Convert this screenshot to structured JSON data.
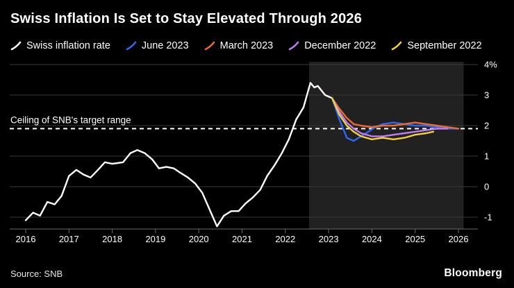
{
  "header": {
    "title": "Swiss Inflation Is Set to Stay Elevated Through 2026"
  },
  "footer": {
    "source": "Source: SNB",
    "brand": "Bloomberg"
  },
  "annotation": {
    "ceiling_label": "Ceiling of SNB's target range",
    "ceiling_value": 1.9
  },
  "colors": {
    "background": "#000000",
    "grid": "#3a3a3a",
    "axis": "#6e6e6e",
    "text": "#ffffff",
    "forecast_region": "rgba(255,255,255,0.13)"
  },
  "chart_data": {
    "type": "line",
    "title": "Swiss Inflation Is Set to Stay Elevated Through 2026",
    "xlabel": "",
    "ylabel": "",
    "ylim": [
      -1,
      4
    ],
    "xlim": [
      2016,
      2026
    ],
    "grid": true,
    "legend_position": "top",
    "x_ticks": [
      2016,
      2017,
      2018,
      2019,
      2020,
      2021,
      2022,
      2023,
      2024,
      2025,
      2026
    ],
    "y_ticks": [
      {
        "value": 4,
        "label": "4%"
      },
      {
        "value": 3,
        "label": "3"
      },
      {
        "value": 2,
        "label": "2"
      },
      {
        "value": 1,
        "label": "1"
      },
      {
        "value": 0,
        "label": "0"
      },
      {
        "value": -1,
        "label": "-1"
      }
    ],
    "forecast_region": {
      "x_start": 2022.55,
      "x_end": 2026.12
    },
    "ceiling_line": {
      "value": 1.9,
      "label": "Ceiling of SNB's target range"
    },
    "series": [
      {
        "name": "Swiss inflation rate",
        "color": "#ffffff",
        "x": [
          2016.0,
          2016.17,
          2016.33,
          2016.5,
          2016.67,
          2016.83,
          2017.0,
          2017.17,
          2017.33,
          2017.5,
          2017.67,
          2017.83,
          2018.0,
          2018.25,
          2018.42,
          2018.58,
          2018.75,
          2018.92,
          2019.08,
          2019.25,
          2019.42,
          2019.58,
          2019.75,
          2019.92,
          2020.08,
          2020.25,
          2020.42,
          2020.58,
          2020.75,
          2020.92,
          2021.08,
          2021.25,
          2021.42,
          2021.58,
          2021.75,
          2021.92,
          2022.08,
          2022.25,
          2022.42,
          2022.58,
          2022.67,
          2022.75,
          2022.92,
          2023.08
        ],
        "values": [
          -1.1,
          -0.85,
          -0.95,
          -0.5,
          -0.58,
          -0.3,
          0.35,
          0.55,
          0.4,
          0.3,
          0.55,
          0.8,
          0.75,
          0.8,
          1.1,
          1.2,
          1.1,
          0.9,
          0.6,
          0.65,
          0.6,
          0.45,
          0.3,
          0.1,
          -0.2,
          -0.75,
          -1.3,
          -0.95,
          -0.8,
          -0.8,
          -0.55,
          -0.35,
          -0.1,
          0.35,
          0.7,
          1.1,
          1.55,
          2.2,
          2.6,
          3.4,
          3.25,
          3.3,
          3.0,
          2.9
        ]
      },
      {
        "name": "June 2023",
        "color": "#2d6af5",
        "x": [
          2023.08,
          2023.25,
          2023.42,
          2023.58,
          2023.75,
          2023.92,
          2024.08,
          2024.25,
          2024.5,
          2024.75,
          2025.0,
          2025.25,
          2025.5,
          2025.75,
          2026.0
        ],
        "values": [
          2.9,
          2.2,
          1.6,
          1.5,
          1.65,
          1.8,
          1.95,
          2.05,
          2.1,
          2.05,
          2.0,
          2.0,
          1.95,
          1.9,
          1.9
        ]
      },
      {
        "name": "March 2023",
        "color": "#ed6b33",
        "x": [
          2023.08,
          2023.25,
          2023.42,
          2023.58,
          2023.75,
          2024.0,
          2024.25,
          2024.5,
          2024.75,
          2025.0,
          2025.25,
          2025.5,
          2025.75,
          2026.0
        ],
        "values": [
          2.9,
          2.55,
          2.25,
          2.05,
          2.0,
          1.95,
          2.0,
          2.0,
          2.05,
          2.1,
          2.05,
          2.0,
          1.95,
          1.9
        ]
      },
      {
        "name": "December 2022",
        "color": "#c07ef5",
        "x": [
          2023.08,
          2023.25,
          2023.42,
          2023.58,
          2023.75,
          2024.0,
          2024.25,
          2024.5,
          2024.75,
          2025.0,
          2025.25,
          2025.5,
          2025.75
        ],
        "values": [
          2.9,
          2.45,
          2.1,
          1.9,
          1.75,
          1.65,
          1.65,
          1.7,
          1.75,
          1.8,
          1.85,
          1.9,
          1.9
        ]
      },
      {
        "name": "September 2022",
        "color": "#f2d13f",
        "x": [
          2023.08,
          2023.25,
          2023.42,
          2023.58,
          2023.75,
          2024.0,
          2024.25,
          2024.5,
          2024.75,
          2025.0,
          2025.25,
          2025.42
        ],
        "values": [
          2.9,
          2.35,
          2.0,
          1.8,
          1.65,
          1.55,
          1.6,
          1.55,
          1.6,
          1.7,
          1.75,
          1.8
        ]
      }
    ]
  }
}
